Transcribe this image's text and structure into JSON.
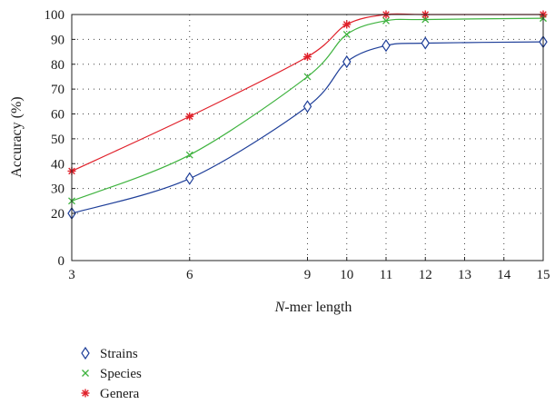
{
  "chart_data": {
    "type": "line",
    "xlabel_italic": "N",
    "xlabel_rest": "-mer length",
    "ylabel": "Accuracy (%)",
    "x": [
      3,
      6,
      9,
      10,
      11,
      12,
      15
    ],
    "x_ticks": [
      3,
      6,
      9,
      10,
      11,
      12,
      13,
      14,
      15
    ],
    "y_ticks": [
      0,
      20,
      30,
      40,
      50,
      60,
      70,
      80,
      90,
      100
    ],
    "grid": true,
    "legend_position": "below",
    "series": [
      {
        "name": "Strains",
        "color": "#1f3f99",
        "marker": "diamond",
        "values": [
          20,
          34,
          63,
          81,
          87.5,
          88.5,
          89
        ]
      },
      {
        "name": "Species",
        "color": "#3fb33f",
        "marker": "x",
        "values": [
          25,
          43.5,
          75,
          92,
          97.5,
          98,
          98.5
        ]
      },
      {
        "name": "Genera",
        "color": "#e0202a",
        "marker": "asterisk",
        "values": [
          37,
          59,
          83,
          96,
          100,
          100,
          100
        ]
      }
    ]
  }
}
